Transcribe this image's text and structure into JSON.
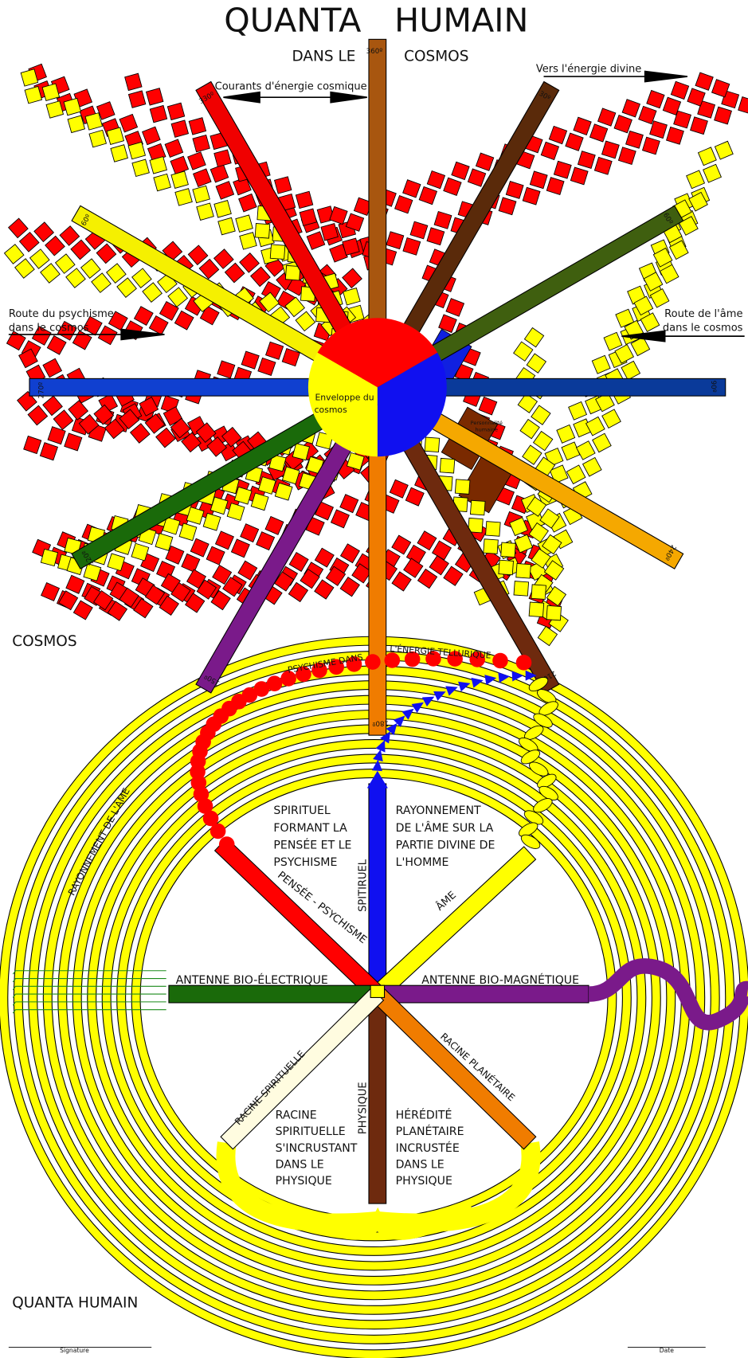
{
  "header": {
    "title_left": "QUANTA",
    "title_right": "HUMAIN",
    "subtitle_left": "DANS LE",
    "subtitle_right": "COSMOS"
  },
  "annotations": {
    "currents": "Courants d'énergie cosmique",
    "divine": "Vers l'énergie divine",
    "psyche_route": [
      "Route du psychisme",
      "dans le cosmos"
    ],
    "soul_route": [
      "Route de l'âme",
      "dans le cosmos"
    ]
  },
  "degrees": [
    "360º",
    "30º",
    "60º",
    "90º",
    "240º",
    "210º",
    "180º",
    "150º",
    "120º",
    "270º",
    "60º",
    "330º"
  ],
  "center": {
    "label": [
      "Enveloppe du",
      "cosmos"
    ],
    "personality": [
      "Personnalité",
      "humaine"
    ]
  },
  "sections": {
    "cosmos": "COSMOS",
    "quanta": "QUANTA HUMAIN"
  },
  "lower": {
    "psyche_arc": "PSYCHISME DANS",
    "telluric": "L'ÉNERGIE TELLURIQUE",
    "soul_radiance": "RAYONNEMENT DE L'ÂME",
    "spiritual_text": [
      "SPIRITUEL",
      "FORMANT LA",
      "PENSÉE ET LE",
      "PSYCHISME"
    ],
    "soul_text": [
      "RAYONNEMENT",
      "DE L'ÂME SUR LA",
      "PARTIE DIVINE DE",
      "L'HOMME"
    ],
    "spiritual": "SPITIRUEL",
    "soul": "ÂME",
    "thought": "PENSÉE - PSYCHISME",
    "bio_electric": "ANTENNE BIO-ÉLECTRIQUE",
    "bio_magnetic": "ANTENNE BIO-MAGNÉTIQUE",
    "spiritual_root": "RACINE SPIRITUELLE",
    "planetary_root": "RACINE PLANÉTAIRE",
    "physical": "PHYSIQUE",
    "root_text": [
      "RACINE",
      "SPIRITUELLE",
      "S'INCRUSTANT",
      "DANS LE",
      "PHYSIQUE"
    ],
    "heredity_text": [
      "HÉRÉDITÉ",
      "PLANÉTAIRE",
      "INCRUSTÉE",
      "DANS LE",
      "PHYSIQUE"
    ]
  },
  "footer": {
    "signature": "Signature",
    "date": "Date"
  }
}
